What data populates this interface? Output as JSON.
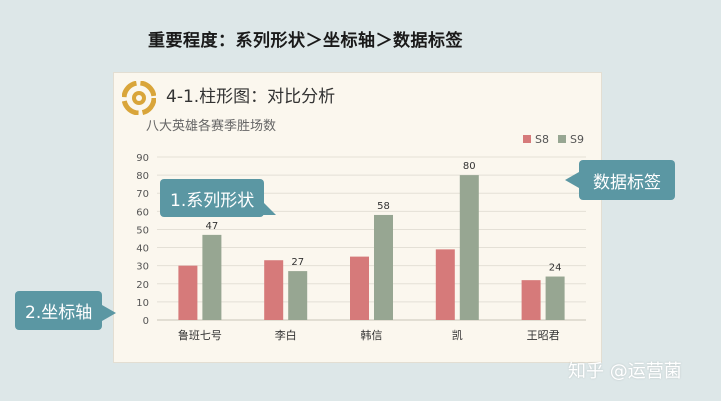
{
  "page_heading": "重要程度：系列形状＞坐标轴＞数据标签",
  "chart_data": {
    "type": "bar",
    "title": "4-1.柱形图：对比分析",
    "subtitle": "八大英雄各赛季胜场数",
    "categories": [
      "鲁班七号",
      "李白",
      "韩信",
      "凯",
      "王昭君"
    ],
    "series": [
      {
        "name": "S8",
        "values": [
          30,
          33,
          35,
          39,
          22
        ],
        "color": "#d67a7a"
      },
      {
        "name": "S9",
        "values": [
          47,
          27,
          58,
          80,
          24
        ],
        "color": "#97a692",
        "data_labels": [
          "47",
          "27",
          "58",
          "80",
          "24"
        ]
      }
    ],
    "ylim": [
      0,
      90
    ],
    "yticks": [
      "0",
      "10",
      "20",
      "30",
      "40",
      "50",
      "60",
      "70",
      "80",
      "90"
    ],
    "grid": true,
    "legend_position": "top-right"
  },
  "callouts": {
    "series_shape": "1.系列形状",
    "axis": "2.坐标轴",
    "data_labels": "数据标签"
  },
  "watermark": "知乎 @运营菌",
  "colors": {
    "background": "#dde7e8",
    "card": "#fbf7ee",
    "callout": "#5b97a3",
    "logo": "#d9a53a"
  }
}
